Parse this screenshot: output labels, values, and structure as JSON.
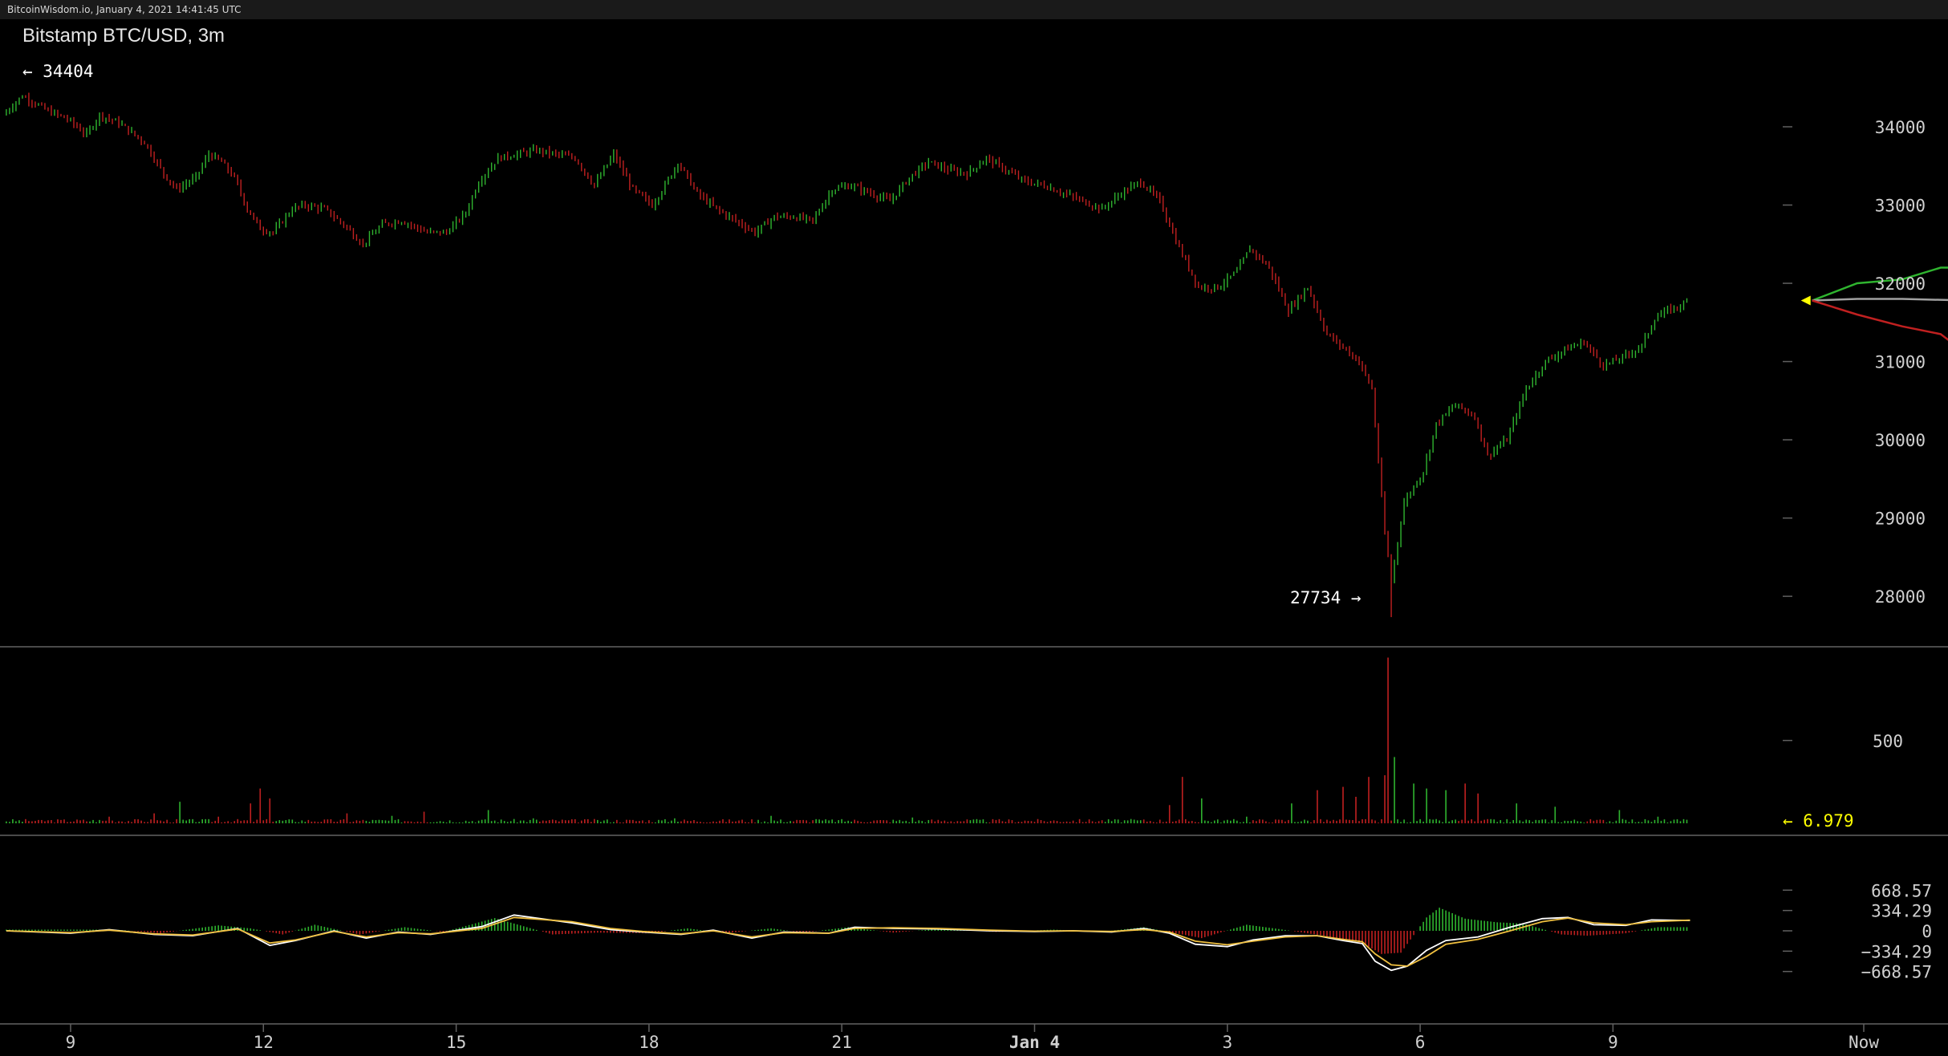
{
  "header": {
    "site_label": "BitcoinWisdom.io, January 4, 2021 14:41:45 UTC"
  },
  "chart_title": "Bitstamp BTC/USD, 3m",
  "colors": {
    "up": "#2fb42f",
    "down": "#c02020",
    "forecast_up": "#2fb42f",
    "forecast_down": "#c02020",
    "forecast_mid": "#a0a0a0",
    "last_marker": "#ffff00",
    "macd_fast": "#ffffff",
    "macd_slow": "#f0c040"
  },
  "annotations": {
    "high_label": "← 34404",
    "low_label": "27734 →",
    "volume_last_label": "← 6.979"
  },
  "chart_data": [
    {
      "type": "candlestick",
      "title": "Bitstamp BTC/USD, 3m",
      "y_ticks": [
        "34000",
        "33000",
        "32000",
        "31000",
        "30000",
        "29000",
        "28000"
      ],
      "y_tick_values": [
        34000,
        33000,
        32000,
        31000,
        30000,
        29000,
        28000
      ],
      "ylim": [
        27500,
        35100
      ],
      "x_ticks": [
        "9",
        "12",
        "15",
        "18",
        "21",
        "Jan 4",
        "3",
        "6",
        "9",
        "Now"
      ],
      "x_tick_hours": [
        9,
        12,
        15,
        18,
        21,
        24,
        27,
        30,
        33
      ],
      "x_range_hours": [
        8.0,
        38.5
      ],
      "high": 34404,
      "low": 27734,
      "price_path": [
        [
          8.0,
          34150
        ],
        [
          8.3,
          34400
        ],
        [
          8.7,
          34200
        ],
        [
          9.0,
          34100
        ],
        [
          9.3,
          33900
        ],
        [
          9.5,
          34150
        ],
        [
          9.8,
          34050
        ],
        [
          10.2,
          33800
        ],
        [
          10.5,
          33400
        ],
        [
          10.7,
          33200
        ],
        [
          11.0,
          33350
        ],
        [
          11.2,
          33650
        ],
        [
          11.4,
          33550
        ],
        [
          11.6,
          33350
        ],
        [
          11.8,
          32950
        ],
        [
          12.0,
          32700
        ],
        [
          12.2,
          32650
        ],
        [
          12.5,
          32950
        ],
        [
          12.7,
          33000
        ],
        [
          13.0,
          32950
        ],
        [
          13.3,
          32750
        ],
        [
          13.6,
          32500
        ],
        [
          13.9,
          32750
        ],
        [
          14.2,
          32800
        ],
        [
          14.6,
          32650
        ],
        [
          14.9,
          32650
        ],
        [
          15.2,
          32900
        ],
        [
          15.4,
          33300
        ],
        [
          15.7,
          33600
        ],
        [
          16.0,
          33650
        ],
        [
          16.3,
          33700
        ],
        [
          16.6,
          33650
        ],
        [
          16.9,
          33600
        ],
        [
          17.2,
          33250
        ],
        [
          17.5,
          33650
        ],
        [
          17.8,
          33200
        ],
        [
          18.1,
          33000
        ],
        [
          18.3,
          33250
        ],
        [
          18.5,
          33550
        ],
        [
          18.8,
          33150
        ],
        [
          19.1,
          32950
        ],
        [
          19.4,
          32800
        ],
        [
          19.7,
          32650
        ],
        [
          20.0,
          32850
        ],
        [
          20.3,
          32850
        ],
        [
          20.6,
          32800
        ],
        [
          20.9,
          33200
        ],
        [
          21.2,
          33250
        ],
        [
          21.5,
          33150
        ],
        [
          21.8,
          33050
        ],
        [
          22.1,
          33350
        ],
        [
          22.4,
          33550
        ],
        [
          22.7,
          33450
        ],
        [
          23.0,
          33400
        ],
        [
          23.3,
          33600
        ],
        [
          23.6,
          33450
        ],
        [
          23.9,
          33300
        ],
        [
          24.2,
          33250
        ],
        [
          24.5,
          33150
        ],
        [
          24.8,
          33050
        ],
        [
          25.1,
          32950
        ],
        [
          25.4,
          33150
        ],
        [
          25.7,
          33300
        ],
        [
          26.0,
          33050
        ],
        [
          26.3,
          32450
        ],
        [
          26.6,
          31950
        ],
        [
          26.9,
          31950
        ],
        [
          27.2,
          32150
        ],
        [
          27.4,
          32450
        ],
        [
          27.7,
          32200
        ],
        [
          28.0,
          31650
        ],
        [
          28.3,
          31950
        ],
        [
          28.6,
          31350
        ],
        [
          28.9,
          31150
        ],
        [
          29.1,
          31000
        ],
        [
          29.3,
          30650
        ],
        [
          29.5,
          28800
        ],
        [
          29.6,
          28200
        ],
        [
          29.8,
          29200
        ],
        [
          30.1,
          29600
        ],
        [
          30.3,
          30200
        ],
        [
          30.6,
          30450
        ],
        [
          30.9,
          30300
        ],
        [
          31.1,
          29800
        ],
        [
          31.4,
          30000
        ],
        [
          31.7,
          30650
        ],
        [
          32.0,
          31000
        ],
        [
          32.3,
          31150
        ],
        [
          32.6,
          31250
        ],
        [
          32.9,
          30950
        ],
        [
          33.2,
          31050
        ],
        [
          33.5,
          31200
        ],
        [
          33.7,
          31550
        ],
        [
          33.9,
          31650
        ],
        [
          34.2,
          31750
        ]
      ],
      "forecast": {
        "upper": [
          [
            36.1,
            31780
          ],
          [
            36.8,
            32000
          ],
          [
            37.5,
            32050
          ],
          [
            38.1,
            32200
          ],
          [
            38.5,
            32200
          ]
        ],
        "middle": [
          [
            36.1,
            31780
          ],
          [
            36.8,
            31800
          ],
          [
            37.5,
            31800
          ],
          [
            38.5,
            31780
          ]
        ],
        "lower": [
          [
            36.1,
            31780
          ],
          [
            36.8,
            31600
          ],
          [
            37.5,
            31450
          ],
          [
            38.1,
            31350
          ],
          [
            38.5,
            31100
          ]
        ]
      }
    },
    {
      "type": "bar",
      "title": "",
      "y_ticks": [
        "500"
      ],
      "y_tick_values": [
        500
      ],
      "ylim": [
        0,
        1080
      ],
      "last_value": 6.979,
      "spikes": [
        [
          8.5,
          20
        ],
        [
          9.6,
          40
        ],
        [
          10.3,
          60
        ],
        [
          10.7,
          130
        ],
        [
          11.3,
          40
        ],
        [
          11.8,
          120
        ],
        [
          11.95,
          210
        ],
        [
          12.1,
          150
        ],
        [
          13.3,
          60
        ],
        [
          14.0,
          45
        ],
        [
          14.5,
          70
        ],
        [
          15.5,
          80
        ],
        [
          16.2,
          30
        ],
        [
          18.4,
          30
        ],
        [
          19.9,
          45
        ],
        [
          20.6,
          25
        ],
        [
          22.1,
          35
        ],
        [
          26.1,
          110
        ],
        [
          26.3,
          280
        ],
        [
          26.6,
          150
        ],
        [
          27.3,
          40
        ],
        [
          28.0,
          120
        ],
        [
          28.4,
          200
        ],
        [
          28.8,
          220
        ],
        [
          29.0,
          160
        ],
        [
          29.2,
          280
        ],
        [
          29.45,
          290
        ],
        [
          29.5,
          1000
        ],
        [
          29.6,
          400
        ],
        [
          29.9,
          240
        ],
        [
          30.1,
          210
        ],
        [
          30.4,
          200
        ],
        [
          30.7,
          240
        ],
        [
          30.9,
          180
        ],
        [
          31.5,
          120
        ],
        [
          32.1,
          100
        ],
        [
          33.1,
          80
        ],
        [
          33.7,
          40
        ]
      ]
    },
    {
      "type": "line",
      "title": "",
      "y_ticks": [
        "668.57",
        "334.29",
        "0",
        "−334.29",
        "−668.57"
      ],
      "y_tick_values": [
        668.57,
        334.29,
        0,
        -334.29,
        -668.57
      ],
      "ylim": [
        -720,
        720
      ],
      "series": [
        {
          "values": [
            [
              8.0,
              0
            ],
            [
              9.0,
              -40
            ],
            [
              9.6,
              20
            ],
            [
              10.3,
              -60
            ],
            [
              10.9,
              -80
            ],
            [
              11.6,
              40
            ],
            [
              12.1,
              -240
            ],
            [
              12.5,
              -160
            ],
            [
              13.1,
              0
            ],
            [
              13.6,
              -120
            ],
            [
              14.1,
              -20
            ],
            [
              14.6,
              -60
            ],
            [
              15.4,
              70
            ],
            [
              15.9,
              260
            ],
            [
              16.8,
              130
            ],
            [
              17.4,
              20
            ],
            [
              17.9,
              -20
            ],
            [
              18.5,
              -60
            ],
            [
              19.0,
              10
            ],
            [
              19.6,
              -120
            ],
            [
              20.1,
              -20
            ],
            [
              20.8,
              -40
            ],
            [
              21.2,
              60
            ],
            [
              21.8,
              40
            ],
            [
              22.5,
              30
            ],
            [
              23.3,
              0
            ],
            [
              24.0,
              -10
            ],
            [
              24.6,
              0
            ],
            [
              25.2,
              -20
            ],
            [
              25.7,
              40
            ],
            [
              26.1,
              -40
            ],
            [
              26.5,
              -220
            ],
            [
              27.0,
              -260
            ],
            [
              27.4,
              -150
            ],
            [
              27.9,
              -80
            ],
            [
              28.4,
              -80
            ],
            [
              28.8,
              -160
            ],
            [
              29.1,
              -210
            ],
            [
              29.3,
              -500
            ],
            [
              29.55,
              -650
            ],
            [
              29.8,
              -580
            ],
            [
              30.1,
              -320
            ],
            [
              30.4,
              -160
            ],
            [
              30.9,
              -100
            ],
            [
              31.4,
              60
            ],
            [
              31.9,
              200
            ],
            [
              32.3,
              220
            ],
            [
              32.7,
              100
            ],
            [
              33.2,
              90
            ],
            [
              33.6,
              180
            ],
            [
              34.2,
              170
            ]
          ]
        },
        {
          "values": [
            [
              8.0,
              0
            ],
            [
              9.0,
              -30
            ],
            [
              9.6,
              10
            ],
            [
              10.3,
              -50
            ],
            [
              10.9,
              -70
            ],
            [
              11.6,
              30
            ],
            [
              12.1,
              -200
            ],
            [
              12.5,
              -150
            ],
            [
              13.1,
              -10
            ],
            [
              13.6,
              -100
            ],
            [
              14.1,
              -30
            ],
            [
              14.6,
              -50
            ],
            [
              15.4,
              40
            ],
            [
              15.9,
              220
            ],
            [
              16.8,
              150
            ],
            [
              17.4,
              40
            ],
            [
              17.9,
              -10
            ],
            [
              18.5,
              -50
            ],
            [
              19.0,
              0
            ],
            [
              19.6,
              -100
            ],
            [
              20.1,
              -30
            ],
            [
              20.8,
              -40
            ],
            [
              21.2,
              40
            ],
            [
              21.8,
              50
            ],
            [
              22.5,
              40
            ],
            [
              23.3,
              10
            ],
            [
              24.0,
              -5
            ],
            [
              24.6,
              0
            ],
            [
              25.2,
              -10
            ],
            [
              25.7,
              20
            ],
            [
              26.1,
              -20
            ],
            [
              26.5,
              -170
            ],
            [
              27.0,
              -230
            ],
            [
              27.4,
              -170
            ],
            [
              27.9,
              -100
            ],
            [
              28.4,
              -80
            ],
            [
              28.8,
              -140
            ],
            [
              29.1,
              -180
            ],
            [
              29.3,
              -380
            ],
            [
              29.55,
              -560
            ],
            [
              29.8,
              -580
            ],
            [
              30.1,
              -420
            ],
            [
              30.4,
              -220
            ],
            [
              30.9,
              -140
            ],
            [
              31.4,
              0
            ],
            [
              31.9,
              150
            ],
            [
              32.3,
              210
            ],
            [
              32.7,
              130
            ],
            [
              33.2,
              100
            ],
            [
              33.6,
              150
            ],
            [
              34.2,
              175
            ]
          ]
        }
      ],
      "histogram": [
        [
          8.5,
          20
        ],
        [
          9.7,
          20
        ],
        [
          10.4,
          -40
        ],
        [
          11.3,
          90
        ],
        [
          11.8,
          40
        ],
        [
          12.3,
          -60
        ],
        [
          12.8,
          100
        ],
        [
          13.5,
          -60
        ],
        [
          14.2,
          60
        ],
        [
          14.8,
          -20
        ],
        [
          15.6,
          210
        ],
        [
          16.5,
          -60
        ],
        [
          17.2,
          -30
        ],
        [
          18.0,
          -40
        ],
        [
          18.6,
          40
        ],
        [
          19.2,
          -40
        ],
        [
          19.9,
          40
        ],
        [
          20.4,
          -30
        ],
        [
          21.1,
          60
        ],
        [
          21.8,
          -30
        ],
        [
          22.6,
          40
        ],
        [
          23.4,
          -20
        ],
        [
          24.3,
          20
        ],
        [
          25.0,
          -20
        ],
        [
          25.7,
          60
        ],
        [
          26.2,
          -40
        ],
        [
          26.6,
          -120
        ],
        [
          27.3,
          100
        ],
        [
          27.8,
          30
        ],
        [
          28.5,
          -80
        ],
        [
          29.1,
          -200
        ],
        [
          29.4,
          -380
        ],
        [
          29.7,
          -360
        ],
        [
          30.1,
          220
        ],
        [
          30.3,
          380
        ],
        [
          30.7,
          200
        ],
        [
          31.2,
          140
        ],
        [
          31.6,
          120
        ],
        [
          32.2,
          -60
        ],
        [
          32.6,
          -80
        ],
        [
          33.2,
          -40
        ],
        [
          33.7,
          60
        ],
        [
          34.1,
          60
        ]
      ]
    }
  ]
}
